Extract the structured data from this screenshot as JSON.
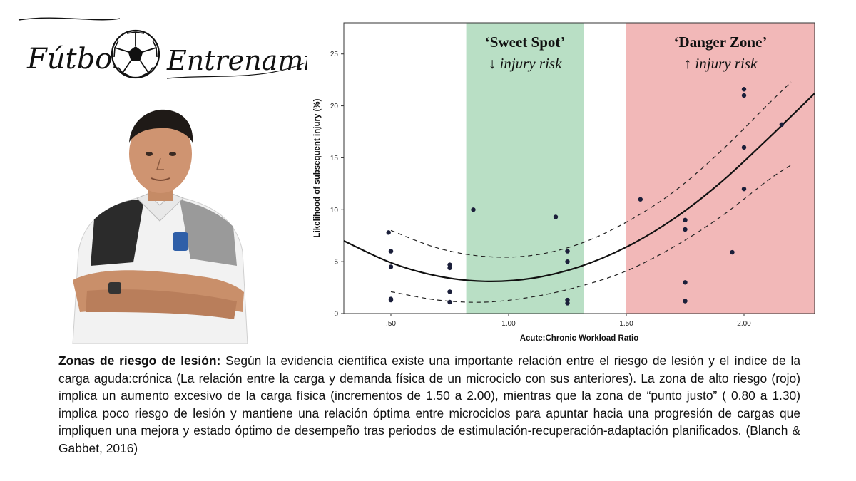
{
  "logo": {
    "word1": "Fútbol",
    "word2": "Entrenamiento",
    "ball_icon": "soccer-ball-icon"
  },
  "photo": {
    "icon": "coach-portrait"
  },
  "colors": {
    "sweet_spot": "#b9dfc5",
    "danger_zone": "#f2b8b8",
    "points": "#1b1f3a",
    "curve": "#111111"
  },
  "chart_data": {
    "type": "scatter",
    "xlabel": "Acute:Chronic Workload Ratio",
    "ylabel": "Likelihood of subsequent injury (%)",
    "xlim": [
      0.3,
      2.3
    ],
    "ylim": [
      0,
      28
    ],
    "x_ticks": [
      0.5,
      1.0,
      1.5,
      2.0
    ],
    "x_tick_labels": [
      ".50",
      "1.00",
      "1.50",
      "2.00"
    ],
    "y_ticks": [
      0,
      5,
      10,
      15,
      20,
      25
    ],
    "y_tick_labels": [
      "0",
      "5",
      "10",
      "15",
      "20",
      "25"
    ],
    "grid": false,
    "zones": [
      {
        "name": "sweet_spot",
        "title": "‘Sweet Spot’",
        "subtitle": "↓ injury risk",
        "x_range": [
          0.82,
          1.32
        ]
      },
      {
        "name": "danger_zone",
        "title": "‘Danger Zone’",
        "subtitle": "↑ injury risk",
        "x_range": [
          1.5,
          2.3
        ]
      }
    ],
    "points": [
      {
        "x": 0.49,
        "y": 7.8
      },
      {
        "x": 0.5,
        "y": 6.0
      },
      {
        "x": 0.5,
        "y": 4.5
      },
      {
        "x": 0.5,
        "y": 1.4
      },
      {
        "x": 0.5,
        "y": 1.3
      },
      {
        "x": 0.75,
        "y": 4.7
      },
      {
        "x": 0.75,
        "y": 4.4
      },
      {
        "x": 0.75,
        "y": 2.1
      },
      {
        "x": 0.75,
        "y": 1.1
      },
      {
        "x": 0.85,
        "y": 10.0
      },
      {
        "x": 1.2,
        "y": 9.3
      },
      {
        "x": 1.25,
        "y": 6.0
      },
      {
        "x": 1.25,
        "y": 5.0
      },
      {
        "x": 1.25,
        "y": 1.3
      },
      {
        "x": 1.25,
        "y": 1.0
      },
      {
        "x": 1.56,
        "y": 11.0
      },
      {
        "x": 1.75,
        "y": 9.0
      },
      {
        "x": 1.75,
        "y": 8.1
      },
      {
        "x": 1.75,
        "y": 3.0
      },
      {
        "x": 1.75,
        "y": 1.2
      },
      {
        "x": 1.95,
        "y": 5.9
      },
      {
        "x": 2.0,
        "y": 21.6
      },
      {
        "x": 2.0,
        "y": 21.0
      },
      {
        "x": 2.0,
        "y": 16.0
      },
      {
        "x": 2.0,
        "y": 12.0
      },
      {
        "x": 2.16,
        "y": 18.2
      }
    ],
    "fit": {
      "x": [
        0.3,
        0.5,
        0.7,
        0.9,
        1.1,
        1.3,
        1.5,
        1.7,
        1.9,
        2.1,
        2.3
      ],
      "y": [
        7.0,
        4.9,
        3.6,
        3.1,
        3.4,
        4.5,
        6.4,
        9.1,
        12.6,
        16.8,
        21.2
      ]
    },
    "ci_upper": {
      "x": [
        0.5,
        0.7,
        0.9,
        1.1,
        1.3,
        1.5,
        1.7,
        1.9,
        2.1,
        2.2
      ],
      "y": [
        8.0,
        6.3,
        5.5,
        5.6,
        6.7,
        8.8,
        11.7,
        15.6,
        20.1,
        22.3
      ]
    },
    "ci_lower": {
      "x": [
        0.5,
        0.7,
        0.9,
        1.1,
        1.3,
        1.5,
        1.7,
        1.9,
        2.1,
        2.2
      ],
      "y": [
        2.1,
        1.3,
        1.1,
        1.6,
        2.6,
        4.1,
        6.4,
        9.3,
        12.8,
        14.3
      ]
    }
  },
  "caption": {
    "bold": "Zonas de riesgo de lesión:",
    "text": " Según la evidencia científica existe una importante relación entre el riesgo de lesión y el índice de la carga aguda:crónica (La relación entre la carga y demanda física de un microciclo con sus anteriores). La zona de alto riesgo (rojo) implica un aumento excesivo de la carga física (incrementos de 1.50 a 2.00), mientras que la zona de “punto justo” ( 0.80 a 1.30) implica poco riesgo de lesión y mantiene una relación óptima entre microciclos para apuntar hacia una progresión de cargas que impliquen una mejora y estado óptimo de desempeño tras periodos de estimulación-recuperación-adaptación planificados. (Blanch & Gabbet, 2016)"
  }
}
